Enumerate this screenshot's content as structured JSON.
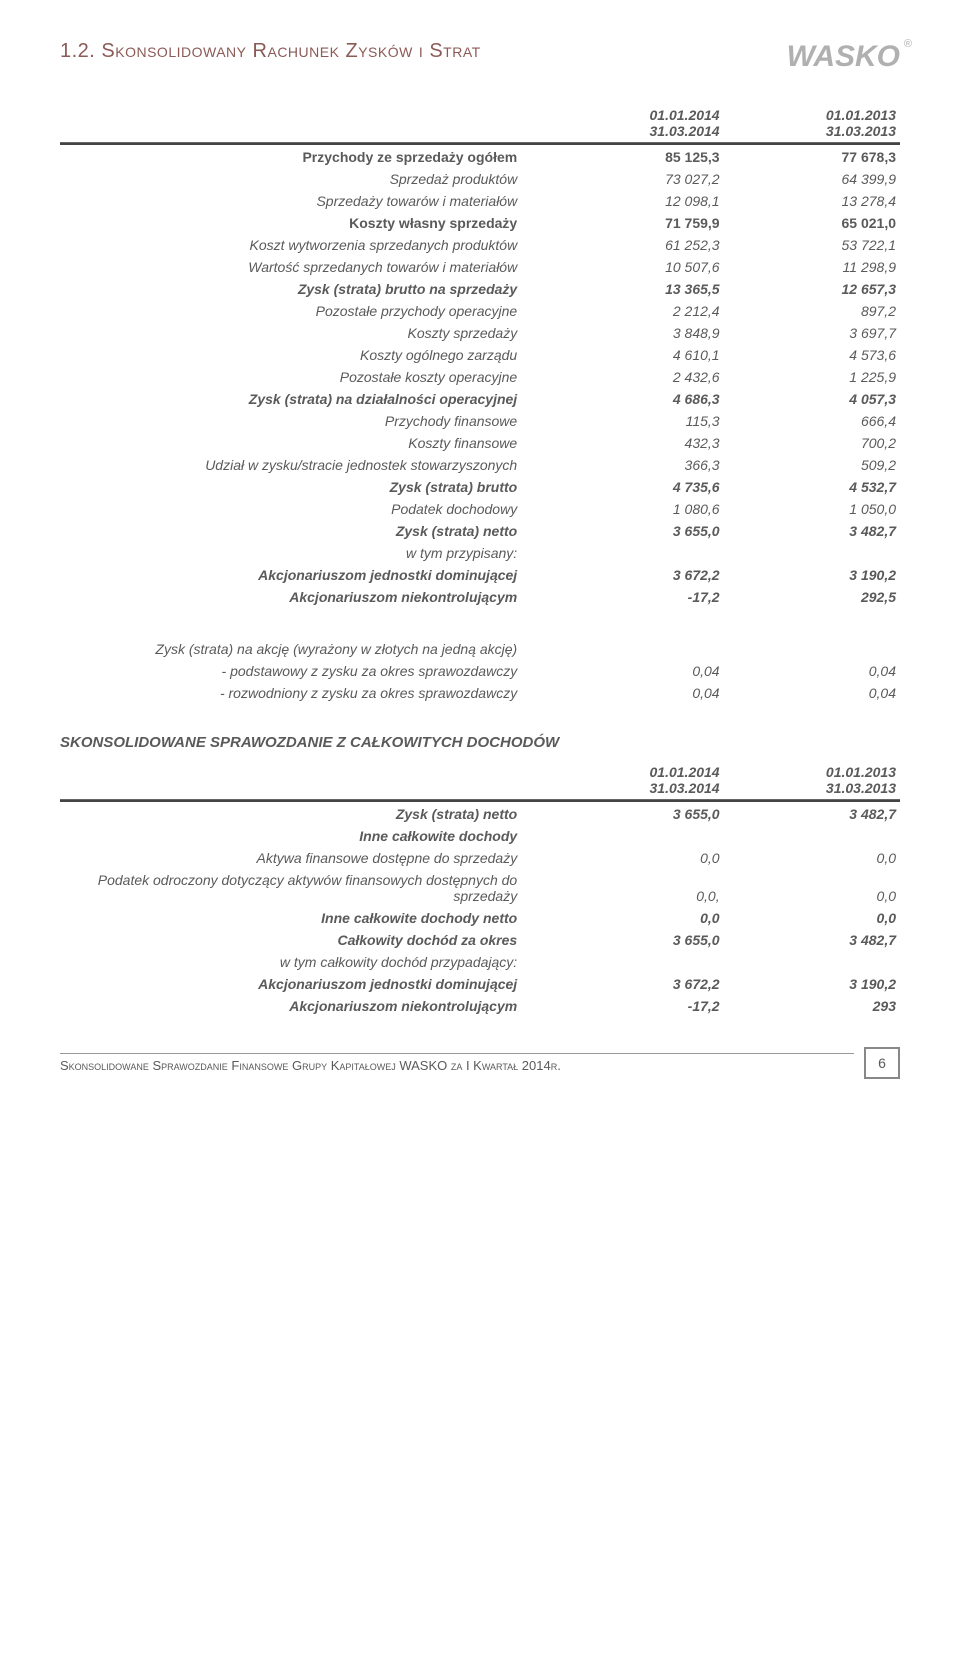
{
  "header": {
    "section_title": "1.2. Skonsolidowany Rachunek Zysków i Strat",
    "logo": "WASKO"
  },
  "periods": {
    "p1_line1": "01.01.2014",
    "p1_line2": "31.03.2014",
    "p2_line1": "01.01.2013",
    "p2_line2": "31.03.2013"
  },
  "rows": [
    {
      "label": "Przychody ze sprzedaży ogółem",
      "v1": "85 125,3",
      "v2": "77 678,3",
      "style": "bold"
    },
    {
      "label": "Sprzedaż produktów",
      "v1": "73 027,2",
      "v2": "64 399,9",
      "style": "italic"
    },
    {
      "label": "Sprzedaży towarów i materiałów",
      "v1": "12 098,1",
      "v2": "13 278,4",
      "style": "italic"
    },
    {
      "label": "Koszty własny sprzedaży",
      "v1": "71 759,9",
      "v2": "65 021,0",
      "style": "bold"
    },
    {
      "label": "Koszt wytworzenia sprzedanych produktów",
      "v1": "61 252,3",
      "v2": "53 722,1",
      "style": "italic"
    },
    {
      "label": "Wartość sprzedanych towarów i materiałów",
      "v1": "10 507,6",
      "v2": "11 298,9",
      "style": "italic"
    },
    {
      "label": "Zysk (strata) brutto na sprzedaży",
      "v1": "13 365,5",
      "v2": "12 657,3",
      "style": "boldrow"
    },
    {
      "label": "Pozostałe przychody operacyjne",
      "v1": "2 212,4",
      "v2": "897,2",
      "style": "italic"
    },
    {
      "label": "Koszty sprzedaży",
      "v1": "3 848,9",
      "v2": "3 697,7",
      "style": "italic"
    },
    {
      "label": "Koszty ogólnego zarządu",
      "v1": "4 610,1",
      "v2": "4 573,6",
      "style": "italic"
    },
    {
      "label": "Pozostałe koszty operacyjne",
      "v1": "2 432,6",
      "v2": "1 225,9",
      "style": "italic"
    },
    {
      "label": "Zysk (strata) na działalności operacyjnej",
      "v1": "4 686,3",
      "v2": "4 057,3",
      "style": "boldrow"
    },
    {
      "label": "Przychody finansowe",
      "v1": "115,3",
      "v2": "666,4",
      "style": "italic"
    },
    {
      "label": "Koszty finansowe",
      "v1": "432,3",
      "v2": "700,2",
      "style": "italic"
    },
    {
      "label": "Udział w zysku/stracie jednostek stowarzyszonych",
      "v1": "366,3",
      "v2": "509,2",
      "style": "italic"
    },
    {
      "label": "Zysk (strata) brutto",
      "v1": "4 735,6",
      "v2": "4 532,7",
      "style": "boldrow"
    },
    {
      "label": "Podatek dochodowy",
      "v1": "1 080,6",
      "v2": "1 050,0",
      "style": "italic"
    },
    {
      "label": "Zysk (strata) netto",
      "v1": "3 655,0",
      "v2": "3 482,7",
      "style": "boldrow"
    },
    {
      "label": "w tym przypisany:",
      "v1": "",
      "v2": "",
      "style": "italic"
    },
    {
      "label": "Akcjonariuszom jednostki dominującej",
      "v1": "3 672,2",
      "v2": "3 190,2",
      "style": "boldrow"
    },
    {
      "label": "Akcjonariuszom niekontrolującym",
      "v1": "-17,2",
      "v2": "292,5",
      "style": "boldrow"
    }
  ],
  "eps": {
    "heading": "Zysk (strata) na akcję (wyrażony w złotych na jedną akcję)",
    "rows": [
      {
        "label": "- podstawowy z zysku za okres sprawozdawczy",
        "v1": "0,04",
        "v2": "0,04"
      },
      {
        "label": "- rozwodniony z zysku za okres sprawozdawczy",
        "v1": "0,04",
        "v2": "0,04"
      }
    ]
  },
  "comp_income": {
    "title": "SKONSOLIDOWANE SPRAWOZDANIE Z CAŁKOWITYCH DOCHODÓW",
    "rows": [
      {
        "label": "Zysk (strata) netto",
        "v1": "3 655,0",
        "v2": "3 482,7",
        "style": "boldrow"
      },
      {
        "label": "Inne całkowite dochody",
        "v1": "",
        "v2": "",
        "style": "boldrow"
      },
      {
        "label": "Aktywa finansowe dostępne do sprzedaży",
        "v1": "0,0",
        "v2": "0,0",
        "style": "italic"
      },
      {
        "label": "Podatek odroczony dotyczący aktywów finansowych dostępnych do sprzedaży",
        "v1": "0,0,",
        "v2": "0,0",
        "style": "italic"
      },
      {
        "label": "Inne całkowite dochody netto",
        "v1": "0,0",
        "v2": "0,0",
        "style": "boldrow"
      },
      {
        "label": "Całkowity dochód za okres",
        "v1": "3 655,0",
        "v2": "3 482,7",
        "style": "boldrow"
      },
      {
        "label": "w tym całkowity dochód przypadający:",
        "v1": "",
        "v2": "",
        "style": "italic"
      },
      {
        "label": "Akcjonariuszom jednostki dominującej",
        "v1": "3 672,2",
        "v2": "3 190,2",
        "style": "boldrow"
      },
      {
        "label": "Akcjonariuszom niekontrolującym",
        "v1": "-17,2",
        "v2": "293",
        "style": "boldrow"
      }
    ]
  },
  "footer": {
    "text": "Skonsolidowane Sprawozdanie Finansowe Grupy Kapitałowej WASKO za I Kwartał 2014r.",
    "page": "6"
  }
}
